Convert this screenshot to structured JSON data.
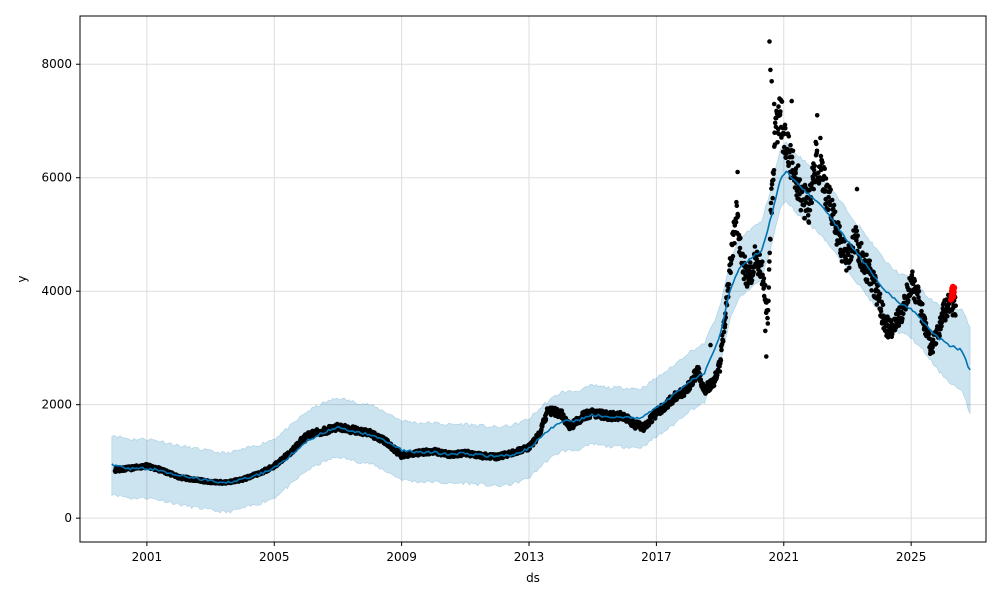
{
  "chart_data": {
    "type": "scatter",
    "xlabel": "ds",
    "ylabel": "y",
    "xlim": [
      1998.9,
      2027.35
    ],
    "ylim": [
      -420,
      8850
    ],
    "x_ticks": [
      2001,
      2005,
      2009,
      2013,
      2017,
      2021,
      2025
    ],
    "x_tick_labels": [
      "2001",
      "2005",
      "2009",
      "2013",
      "2017",
      "2021",
      "2025"
    ],
    "y_ticks": [
      0,
      2000,
      4000,
      6000,
      8000
    ],
    "y_tick_labels": [
      "0",
      "2000",
      "4000",
      "6000",
      "8000"
    ],
    "grid": true,
    "colors": {
      "observed": "#000000",
      "forecast_line": "#0072B2",
      "uncertainty_band": "#0072B2",
      "recent_points": "#ff0000",
      "grid": "#dddddd"
    },
    "series": [
      {
        "role": "observed",
        "anchors": [
          [
            2000.0,
            850
          ],
          [
            2000.5,
            880
          ],
          [
            2001.0,
            920
          ],
          [
            2001.5,
            840
          ],
          [
            2002.0,
            720
          ],
          [
            2002.5,
            680
          ],
          [
            2003.0,
            640
          ],
          [
            2003.5,
            630
          ],
          [
            2004.0,
            680
          ],
          [
            2004.5,
            780
          ],
          [
            2005.0,
            920
          ],
          [
            2005.5,
            1150
          ],
          [
            2006.0,
            1450
          ],
          [
            2006.5,
            1530
          ],
          [
            2007.0,
            1600
          ],
          [
            2007.5,
            1550
          ],
          [
            2008.0,
            1500
          ],
          [
            2008.5,
            1350
          ],
          [
            2009.0,
            1100
          ],
          [
            2009.5,
            1150
          ],
          [
            2010.0,
            1180
          ],
          [
            2010.5,
            1120
          ],
          [
            2011.0,
            1150
          ],
          [
            2011.5,
            1100
          ],
          [
            2012.0,
            1080
          ],
          [
            2012.5,
            1150
          ],
          [
            2013.0,
            1250
          ],
          [
            2013.3,
            1450
          ],
          [
            2013.6,
            1900
          ],
          [
            2014.0,
            1850
          ],
          [
            2014.3,
            1600
          ],
          [
            2014.7,
            1800
          ],
          [
            2015.0,
            1850
          ],
          [
            2015.5,
            1800
          ],
          [
            2016.0,
            1800
          ],
          [
            2016.3,
            1650
          ],
          [
            2016.6,
            1600
          ],
          [
            2017.0,
            1850
          ],
          [
            2017.5,
            2100
          ],
          [
            2018.0,
            2300
          ],
          [
            2018.3,
            2600
          ],
          [
            2018.5,
            2250
          ],
          [
            2018.8,
            2400
          ],
          [
            2019.0,
            2700
          ],
          [
            2019.2,
            3800
          ],
          [
            2019.4,
            4800
          ],
          [
            2019.5,
            5400
          ],
          [
            2019.7,
            4500
          ],
          [
            2019.9,
            4200
          ],
          [
            2020.1,
            4600
          ],
          [
            2020.3,
            4400
          ],
          [
            2020.4,
            4000
          ],
          [
            2020.5,
            3600
          ],
          [
            2020.6,
            5500
          ],
          [
            2020.75,
            6800
          ],
          [
            2020.9,
            7200
          ],
          [
            2021.0,
            6700
          ],
          [
            2021.2,
            6300
          ],
          [
            2021.4,
            6000
          ],
          [
            2021.6,
            5600
          ],
          [
            2021.8,
            5500
          ],
          [
            2022.0,
            6300
          ],
          [
            2022.2,
            6000
          ],
          [
            2022.4,
            5700
          ],
          [
            2022.6,
            5200
          ],
          [
            2022.8,
            4800
          ],
          [
            2023.0,
            4500
          ],
          [
            2023.2,
            5000
          ],
          [
            2023.4,
            4700
          ],
          [
            2023.6,
            4400
          ],
          [
            2023.8,
            4200
          ],
          [
            2024.0,
            3800
          ],
          [
            2024.2,
            3400
          ],
          [
            2024.4,
            3300
          ],
          [
            2024.6,
            3500
          ],
          [
            2024.8,
            3800
          ],
          [
            2025.0,
            4200
          ],
          [
            2025.2,
            3900
          ],
          [
            2025.4,
            3500
          ],
          [
            2025.6,
            3000
          ],
          [
            2025.8,
            3200
          ],
          [
            2026.0,
            3600
          ],
          [
            2026.2,
            3800
          ],
          [
            2026.4,
            3750
          ]
        ],
        "spikes": [
          [
            2020.55,
            8400
          ],
          [
            2020.58,
            7900
          ],
          [
            2020.62,
            7700
          ],
          [
            2020.7,
            7300
          ],
          [
            2020.45,
            2850
          ],
          [
            2020.42,
            3300
          ],
          [
            2019.55,
            6100
          ],
          [
            2021.25,
            7350
          ],
          [
            2022.05,
            7100
          ],
          [
            2022.15,
            6700
          ],
          [
            2023.3,
            5800
          ],
          [
            2018.7,
            3050
          ]
        ]
      },
      {
        "role": "forecast",
        "anchors": [
          [
            1999.9,
            950
          ],
          [
            2000.5,
            870
          ],
          [
            2001.0,
            880
          ],
          [
            2001.5,
            830
          ],
          [
            2002.0,
            760
          ],
          [
            2002.5,
            710
          ],
          [
            2003.0,
            660
          ],
          [
            2003.5,
            620
          ],
          [
            2004.0,
            690
          ],
          [
            2004.5,
            770
          ],
          [
            2005.0,
            880
          ],
          [
            2005.5,
            1100
          ],
          [
            2006.0,
            1350
          ],
          [
            2006.5,
            1500
          ],
          [
            2007.0,
            1600
          ],
          [
            2007.5,
            1530
          ],
          [
            2008.0,
            1480
          ],
          [
            2008.5,
            1350
          ],
          [
            2009.0,
            1200
          ],
          [
            2009.5,
            1160
          ],
          [
            2010.0,
            1160
          ],
          [
            2010.5,
            1130
          ],
          [
            2011.0,
            1140
          ],
          [
            2011.5,
            1110
          ],
          [
            2012.0,
            1080
          ],
          [
            2012.5,
            1120
          ],
          [
            2013.0,
            1230
          ],
          [
            2013.5,
            1500
          ],
          [
            2014.0,
            1700
          ],
          [
            2014.5,
            1720
          ],
          [
            2015.0,
            1820
          ],
          [
            2015.5,
            1780
          ],
          [
            2016.0,
            1780
          ],
          [
            2016.5,
            1760
          ],
          [
            2017.0,
            1950
          ],
          [
            2017.5,
            2150
          ],
          [
            2018.0,
            2400
          ],
          [
            2018.5,
            2550
          ],
          [
            2019.0,
            3200
          ],
          [
            2019.3,
            4000
          ],
          [
            2019.6,
            4400
          ],
          [
            2020.0,
            4600
          ],
          [
            2020.3,
            4700
          ],
          [
            2020.6,
            5300
          ],
          [
            2020.9,
            6000
          ],
          [
            2021.1,
            6100
          ],
          [
            2021.4,
            5900
          ],
          [
            2021.8,
            5700
          ],
          [
            2022.2,
            5500
          ],
          [
            2022.6,
            5200
          ],
          [
            2023.0,
            4900
          ],
          [
            2023.4,
            4600
          ],
          [
            2023.8,
            4300
          ],
          [
            2024.2,
            4000
          ],
          [
            2024.6,
            3800
          ],
          [
            2025.0,
            3700
          ],
          [
            2025.4,
            3450
          ],
          [
            2025.8,
            3200
          ],
          [
            2026.2,
            3050
          ],
          [
            2026.6,
            2950
          ],
          [
            2026.85,
            2600
          ]
        ],
        "band_halfwidth": 520
      },
      {
        "role": "recent",
        "points": [
          [
            2026.25,
            3850
          ],
          [
            2026.27,
            3920
          ],
          [
            2026.28,
            4000
          ],
          [
            2026.29,
            4050
          ],
          [
            2026.3,
            3950
          ],
          [
            2026.31,
            4080
          ],
          [
            2026.32,
            3900
          ],
          [
            2026.33,
            4020
          ],
          [
            2026.34,
            3980
          ],
          [
            2026.35,
            4060
          ]
        ]
      }
    ]
  }
}
